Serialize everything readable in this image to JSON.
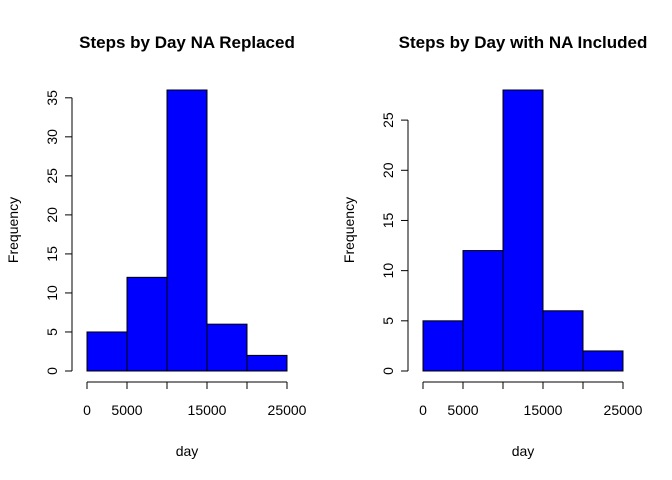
{
  "chart_data": [
    {
      "type": "bar",
      "title": "Steps by Day NA Replaced",
      "xlabel": "day",
      "ylabel": "Frequency",
      "bins": [
        [
          0,
          5000
        ],
        [
          5000,
          10000
        ],
        [
          10000,
          15000
        ],
        [
          15000,
          20000
        ],
        [
          20000,
          25000
        ]
      ],
      "values": [
        5,
        12,
        36,
        6,
        2
      ],
      "xticks": [
        0,
        5000,
        15000,
        25000
      ],
      "yticks": [
        0,
        5,
        10,
        15,
        20,
        25,
        30,
        35
      ],
      "xlim": [
        0,
        25000
      ],
      "ylim": [
        0,
        36
      ],
      "bar_color": "#0000ff"
    },
    {
      "type": "bar",
      "title": "Steps by Day with NA Included",
      "xlabel": "day",
      "ylabel": "Frequency",
      "bins": [
        [
          0,
          5000
        ],
        [
          5000,
          10000
        ],
        [
          10000,
          15000
        ],
        [
          15000,
          20000
        ],
        [
          20000,
          25000
        ]
      ],
      "values": [
        5,
        12,
        28,
        6,
        2
      ],
      "xticks": [
        0,
        5000,
        15000,
        25000
      ],
      "yticks": [
        0,
        5,
        10,
        15,
        20,
        25
      ],
      "xlim": [
        0,
        25000
      ],
      "ylim": [
        0,
        28
      ],
      "bar_color": "#0000ff"
    }
  ]
}
